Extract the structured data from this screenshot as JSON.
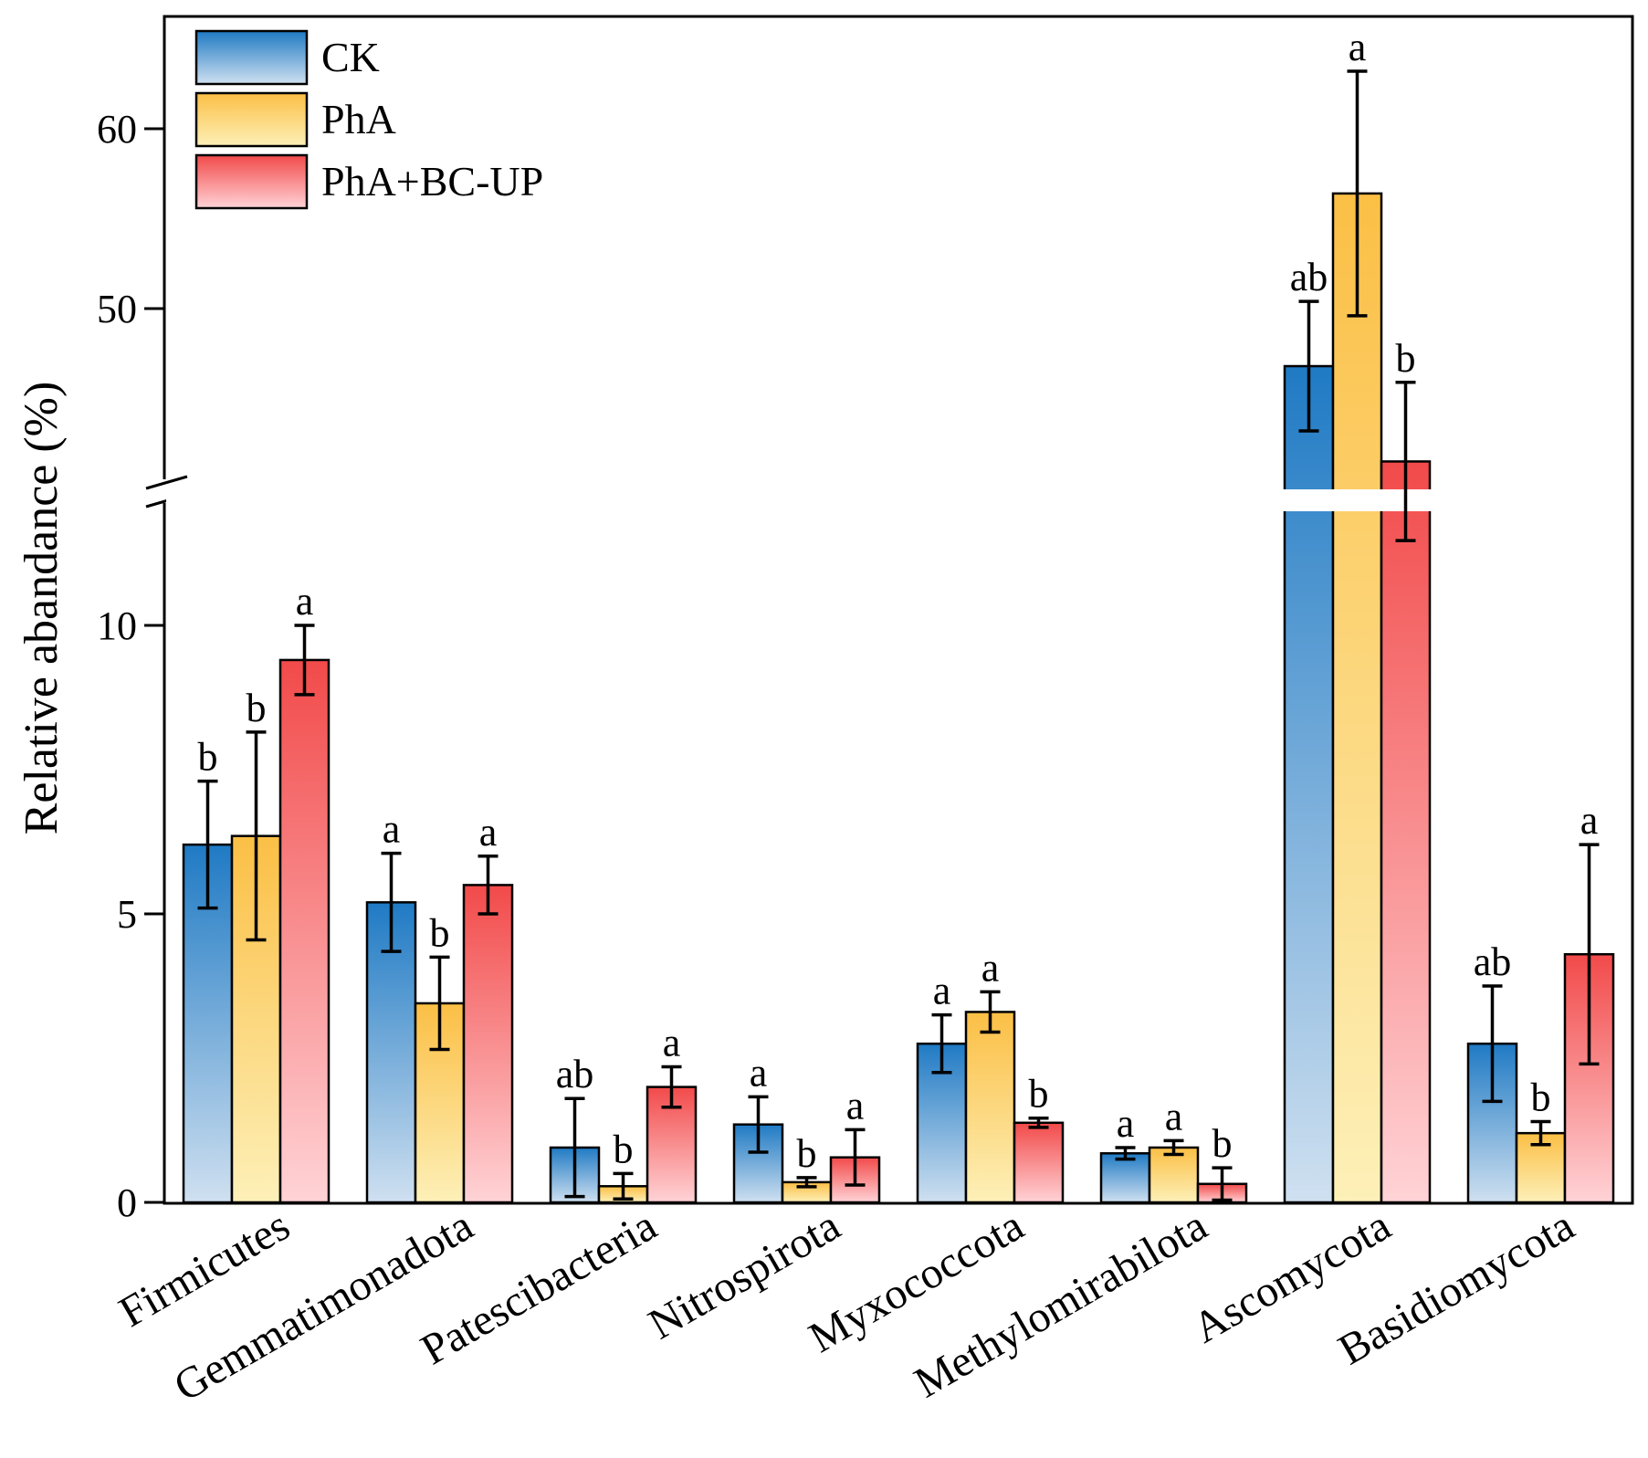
{
  "chart_data": {
    "type": "bar",
    "title": "",
    "xlabel": "",
    "ylabel": "Relative abandance (%)",
    "y_axis_break": {
      "lower_range": [
        0,
        12
      ],
      "upper_range": [
        43,
        64
      ]
    },
    "yticks_lower": [
      0,
      5,
      10
    ],
    "yticks_upper": [
      50,
      60
    ],
    "legend_position": "top-left",
    "categories": [
      "Firmicutes",
      "Gemmatimonadota",
      "Patescibacteria",
      "Nitrospirota",
      "Myxococcota",
      "Methylomirabilota",
      "Ascomycota",
      "Basidiomycota"
    ],
    "series": [
      {
        "name": "CK",
        "color_top": "#1f7ac4",
        "color_bottom": "#cfe0f0",
        "values": [
          6.2,
          5.2,
          0.95,
          1.35,
          2.75,
          0.85,
          46.8,
          2.75
        ],
        "errors": [
          1.1,
          0.85,
          0.85,
          0.48,
          0.5,
          0.1,
          3.6,
          1.0
        ],
        "labels": [
          "b",
          "a",
          "ab",
          "a",
          "a",
          "a",
          "ab",
          "ab"
        ]
      },
      {
        "name": "PhA",
        "color_top": "#fbbf45",
        "color_bottom": "#fdf0b8",
        "values": [
          6.35,
          3.45,
          0.28,
          0.35,
          3.3,
          0.95,
          56.4,
          1.2
        ],
        "errors": [
          1.8,
          0.8,
          0.22,
          0.08,
          0.35,
          0.12,
          6.8,
          0.2
        ],
        "labels": [
          "b",
          "b",
          "b",
          "b",
          "a",
          "a",
          "a",
          "b"
        ]
      },
      {
        "name": "PhA+BC-UP",
        "color_top": "#f24a4a",
        "color_bottom": "#ffd3d6",
        "values": [
          9.4,
          5.5,
          2.0,
          0.78,
          1.38,
          0.32,
          41.5,
          4.3
        ],
        "errors": [
          0.6,
          0.5,
          0.35,
          0.48,
          0.08,
          0.28,
          4.4,
          1.9
        ],
        "labels": [
          "a",
          "a",
          "a",
          "a",
          "b",
          "b",
          "b",
          "a"
        ]
      }
    ]
  }
}
